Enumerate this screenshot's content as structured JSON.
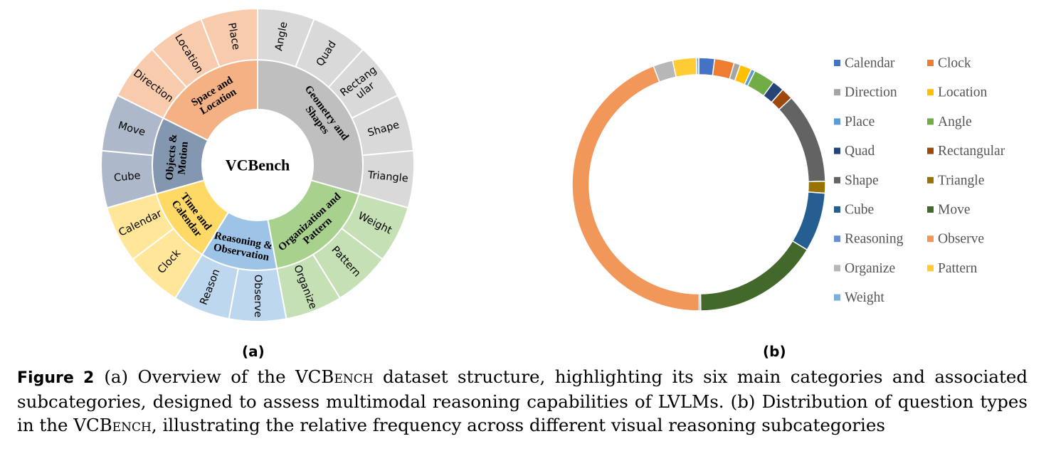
{
  "figure": {
    "panel_a_label": "(a)",
    "panel_b_label": "(b)",
    "caption_head": "Figure 2",
    "caption_parts": [
      {
        "text": "(a) Overview of the VCB",
        "style": "normal"
      },
      {
        "text": "ench",
        "style": "smallcaps"
      },
      {
        "text": " dataset structure, highlighting its six main categories and associated subcategories, designed to assess multimodal reasoning capabilities of LVLMs. (b) Distribution of question types in the VCB",
        "style": "normal"
      },
      {
        "text": "ench",
        "style": "smallcaps"
      },
      {
        "text": ", illustrating the relative frequency across different visual reasoning subcategories",
        "style": "normal"
      }
    ]
  },
  "chart_data": [
    {
      "type": "sunburst",
      "center_label": "VCBench",
      "categories": [
        {
          "name": "Geometry and Shapes",
          "color": "#bfbfbf",
          "subcolor": "#d9d9d9",
          "subcategories": [
            "Angle",
            "Quad",
            "Rectang ular",
            "Shape",
            "Triangle"
          ]
        },
        {
          "name": "Organization and Pattern",
          "color": "#a9d18e",
          "subcolor": "#c5e0b4",
          "subcategories": [
            "Weight",
            "Pattern",
            "Organize"
          ]
        },
        {
          "name": "Reasoning & Observation",
          "color": "#9dc3e6",
          "subcolor": "#bdd7ee",
          "subcategories": [
            "Observe",
            "Reason"
          ]
        },
        {
          "name": "Time and Calendar",
          "color": "#ffd966",
          "subcolor": "#ffe699",
          "subcategories": [
            "Clock",
            "Calendar"
          ]
        },
        {
          "name": "Objects & Motion",
          "color": "#8497b0",
          "subcolor": "#adb9ca",
          "subcategories": [
            "Cube",
            "Move"
          ]
        },
        {
          "name": "Space and Location",
          "color": "#f4b183",
          "subcolor": "#f8cbad",
          "subcategories": [
            "Direction",
            "Location",
            "Place"
          ]
        }
      ]
    },
    {
      "type": "donut",
      "legend_position": "right",
      "series": [
        {
          "name": "Calendar",
          "value": 2.0,
          "color": "#4472c4"
        },
        {
          "name": "Clock",
          "value": 2.5,
          "color": "#ed7d31"
        },
        {
          "name": "Direction",
          "value": 0.8,
          "color": "#a5a5a5"
        },
        {
          "name": "Location",
          "value": 1.5,
          "color": "#ffc000"
        },
        {
          "name": "Place",
          "value": 0.5,
          "color": "#5b9bd5"
        },
        {
          "name": "Angle",
          "value": 2.7,
          "color": "#70ad47"
        },
        {
          "name": "Quad",
          "value": 1.5,
          "color": "#264478"
        },
        {
          "name": "Rectangular",
          "value": 1.5,
          "color": "#9e480e"
        },
        {
          "name": "Shape",
          "value": 11.5,
          "color": "#636363"
        },
        {
          "name": "Triangle",
          "value": 1.5,
          "color": "#997300"
        },
        {
          "name": "Cube",
          "value": 7.5,
          "color": "#255e91"
        },
        {
          "name": "Move",
          "value": 16.0,
          "color": "#43682b"
        },
        {
          "name": "Reasoning",
          "value": 0.2,
          "color": "#698ed0"
        },
        {
          "name": "Observe",
          "value": 44.0,
          "color": "#f1975a"
        },
        {
          "name": "Organize",
          "value": 2.5,
          "color": "#b7b7b7"
        },
        {
          "name": "Pattern",
          "value": 3.0,
          "color": "#ffcd33"
        },
        {
          "name": "Weight",
          "value": 0.3,
          "color": "#7cafdd"
        }
      ]
    }
  ]
}
